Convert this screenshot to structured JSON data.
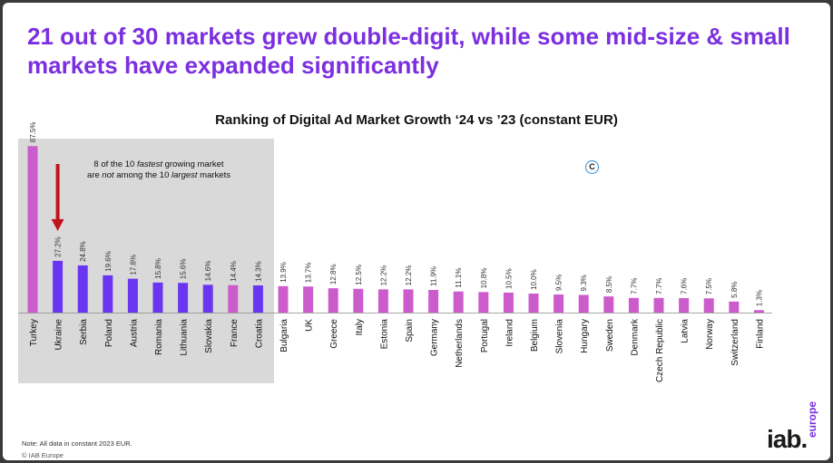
{
  "headline": "21 out of 30 markets grew double-digit, while some mid-size & small markets have expanded significantly",
  "annotation": {
    "line1_prefix": "8 of the 10 ",
    "line1_em": "fastest",
    "line1_suffix": " growing market",
    "line2_prefix": "are ",
    "line2_em": "not",
    "line2_mid": " among the 10 ",
    "line2_em2": "largest",
    "line2_suffix": " markets"
  },
  "copyright_symbol": "C",
  "note": "Note: All data in constant 2023 EUR.",
  "source": "© IAB Europe",
  "logo": {
    "main": "iab.",
    "sub": "europe"
  },
  "colors": {
    "highlight": "#cc5ccc",
    "accent": "#6a35f0",
    "other": "#cc5ccc",
    "arrow": "#c0141c",
    "headline": "#7b2fe0"
  },
  "chart_data": {
    "type": "bar",
    "title": "Ranking of Digital Ad Market Growth ‘24 vs ’23 (constant EUR)",
    "xlabel": "",
    "ylabel": "",
    "ylim": [
      0,
      90
    ],
    "categories": [
      "Turkey",
      "Ukraine",
      "Serbia",
      "Poland",
      "Austria",
      "Romania",
      "Lithuania",
      "Slovakia",
      "France",
      "Croatia",
      "Bulgaria",
      "UK",
      "Greece",
      "Italy",
      "Estonia",
      "Spain",
      "Germany",
      "Netherlands",
      "Portugal",
      "Ireland",
      "Belgium",
      "Slovenia",
      "Hungary",
      "Sweden",
      "Denmark",
      "Czech Republic",
      "Latvia",
      "Norway",
      "Switzerland",
      "Finland"
    ],
    "values": [
      87.5,
      27.2,
      24.8,
      19.6,
      17.8,
      15.8,
      15.6,
      14.6,
      14.4,
      14.3,
      13.9,
      13.7,
      12.8,
      12.5,
      12.2,
      12.2,
      11.9,
      11.1,
      10.8,
      10.5,
      10.0,
      9.5,
      9.3,
      8.5,
      7.7,
      7.7,
      7.6,
      7.5,
      5.8,
      1.3
    ],
    "value_labels": [
      "87.5%",
      "27.2%",
      "24.8%",
      "19.6%",
      "17.8%",
      "15.8%",
      "15.6%",
      "14.6%",
      "14.4%",
      "14.3%",
      "13.9%",
      "13.7%",
      "12.8%",
      "12.5%",
      "12.2%",
      "12.2%",
      "11.9%",
      "11.1%",
      "10.8%",
      "10.5%",
      "10.0%",
      "9.5%",
      "9.3%",
      "8.5%",
      "7.7%",
      "7.7%",
      "7.6%",
      "7.5%",
      "5.8%",
      "1.3%"
    ],
    "bar_colors": [
      "#cc5ccc",
      "#6a35f0",
      "#6a35f0",
      "#6a35f0",
      "#6a35f0",
      "#6a35f0",
      "#6a35f0",
      "#6a35f0",
      "#cc5ccc",
      "#6a35f0",
      "#cc5ccc",
      "#cc5ccc",
      "#cc5ccc",
      "#cc5ccc",
      "#cc5ccc",
      "#cc5ccc",
      "#cc5ccc",
      "#cc5ccc",
      "#cc5ccc",
      "#cc5ccc",
      "#cc5ccc",
      "#cc5ccc",
      "#cc5ccc",
      "#cc5ccc",
      "#cc5ccc",
      "#cc5ccc",
      "#cc5ccc",
      "#cc5ccc",
      "#cc5ccc",
      "#cc5ccc"
    ],
    "highlight_group": "top 10 fastest growing",
    "grid": false
  }
}
